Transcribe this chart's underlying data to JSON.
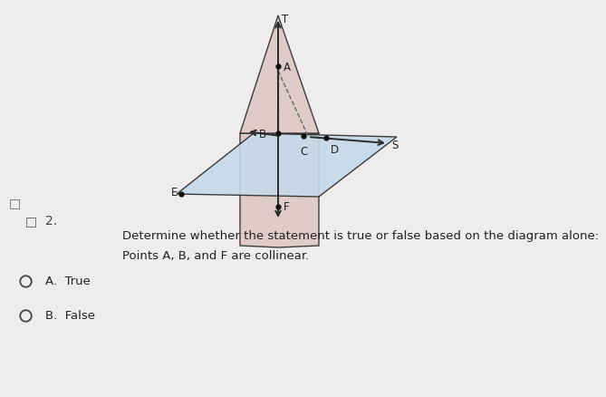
{
  "bg_color": "#eeecec",
  "question_text": "Determine whether the statement is true or false based on the diagram alone:",
  "statement_text": "Points A, B, and F are collinear.",
  "option_a": "A.  True",
  "option_b": "B.  False",
  "plane_horiz_color": "#c5d9e8",
  "plane_vert_color": "#dfc8c8",
  "line_color": "#2a2a2a",
  "dashed_color": "#666666",
  "point_color": "#111111",
  "text_color": "#222222"
}
